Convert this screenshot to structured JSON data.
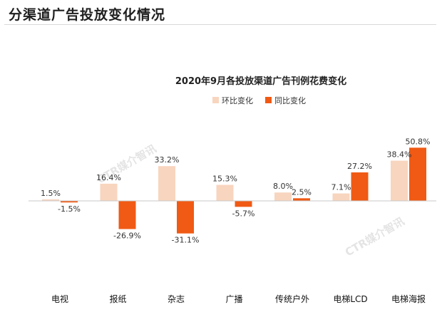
{
  "page_title": "分渠道广告投放变化情况",
  "colors": {
    "mom": "#f8d5bf",
    "yoy": "#f05a14",
    "axis": "#c8c8c8",
    "watermark": "#cfcfcf"
  },
  "watermark": "CTR媒介智讯",
  "chart_data": {
    "type": "bar",
    "title": "2020年9月各投放渠道广告刊例花费变化",
    "categories": [
      "电视",
      "报纸",
      "杂志",
      "广播",
      "传统户外",
      "电梯LCD",
      "电梯海报"
    ],
    "series": [
      {
        "name": "环比变化",
        "values": [
          1.5,
          16.4,
          33.2,
          15.3,
          8.0,
          7.1,
          38.4
        ],
        "labels": [
          "1.5%",
          "16.4%",
          "33.2%",
          "15.3%",
          "8.0%",
          "7.1%",
          "38.4%"
        ]
      },
      {
        "name": "同比变化",
        "values": [
          -1.5,
          -26.9,
          -31.1,
          -5.7,
          2.5,
          27.2,
          50.8
        ],
        "labels": [
          "-1.5%",
          "-26.9%",
          "-31.1%",
          "-5.7%",
          "2.5%",
          "27.2%",
          "50.8%"
        ]
      }
    ],
    "legend_position": "top-center",
    "grid": false
  }
}
